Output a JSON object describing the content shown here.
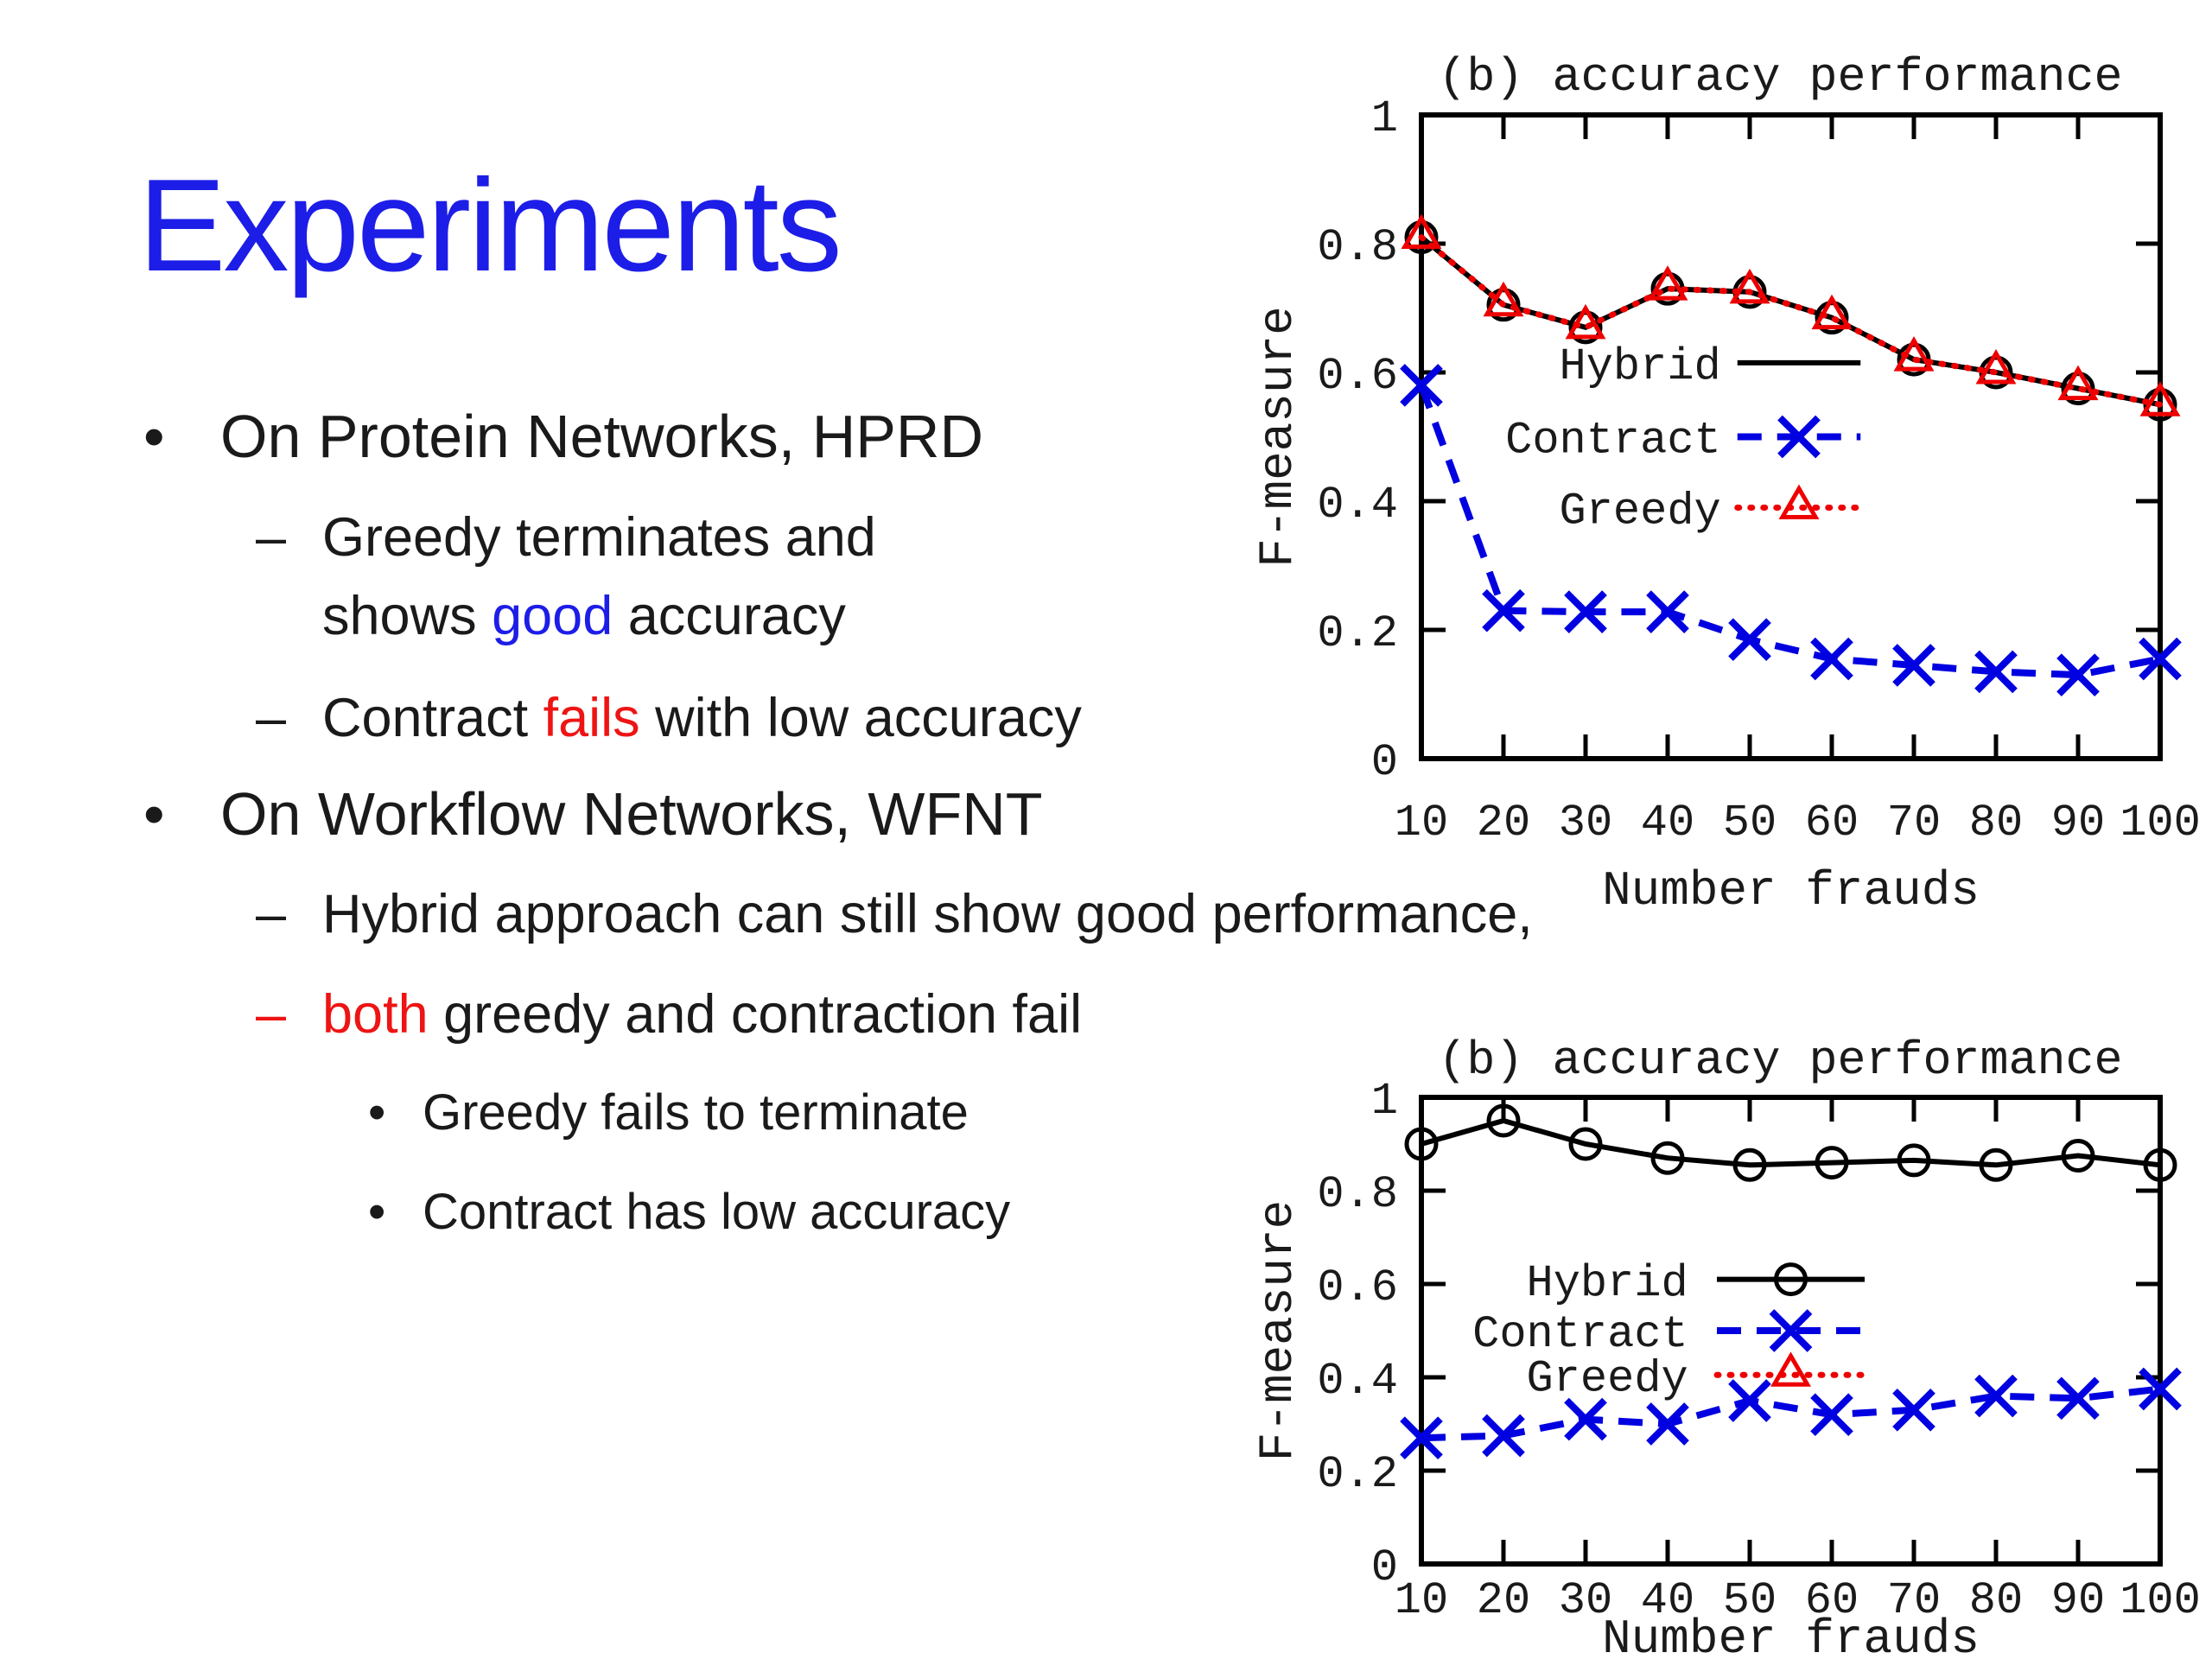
{
  "slide": {
    "title": "Experiments",
    "colors": {
      "title_blue": "#1d1de8",
      "body": "#1a1a1a",
      "accent_blue": "#1d1de8",
      "accent_red": "#ee1414",
      "chart_black": "#000000",
      "chart_blue": "#0000e0",
      "chart_red": "#ee0000",
      "background": "#ffffff"
    },
    "lines": [
      {
        "level": 1,
        "marker": "•",
        "segments": [
          {
            "text": "On Protein Networks, HPRD"
          }
        ]
      },
      {
        "level": 2,
        "marker": "–",
        "segments": [
          {
            "text": "Greedy terminates and"
          }
        ]
      },
      {
        "level": 2,
        "marker": "",
        "segments": [
          {
            "text": "shows "
          },
          {
            "text": "good",
            "color": "accent_blue"
          },
          {
            "text": " accuracy"
          }
        ]
      },
      {
        "level": 2,
        "marker": "–",
        "segments": [
          {
            "text": "Contract "
          },
          {
            "text": "fails",
            "color": "accent_red"
          },
          {
            "text": " with low accuracy"
          }
        ]
      },
      {
        "level": 1,
        "marker": "•",
        "segments": [
          {
            "text": "On Workflow Networks, WFNT"
          }
        ]
      },
      {
        "level": 2,
        "marker": "–",
        "segments": [
          {
            "text": "Hybrid approach can still show good performance,"
          }
        ]
      },
      {
        "level": 2,
        "marker": "–",
        "marker_color": "accent_red",
        "segments": [
          {
            "text": "both",
            "color": "accent_red"
          },
          {
            "text": " greedy and contraction fail"
          }
        ]
      },
      {
        "level": 3,
        "marker": "•",
        "segments": [
          {
            "text": "Greedy fails to terminate"
          }
        ]
      },
      {
        "level": 3,
        "marker": "•",
        "segments": [
          {
            "text": "Contract has low accuracy"
          }
        ]
      }
    ]
  },
  "chart_data": [
    {
      "type": "line",
      "name": "hprd-accuracy",
      "title": "(b) accuracy performance",
      "xlabel": "Number frauds",
      "ylabel": "F-measure",
      "x": [
        10,
        20,
        30,
        40,
        50,
        60,
        70,
        80,
        90,
        100
      ],
      "xlim": [
        10,
        100
      ],
      "ylim": [
        0,
        1
      ],
      "xticks": [
        10,
        20,
        30,
        40,
        50,
        60,
        70,
        80,
        90,
        100
      ],
      "xtick_labels": [
        "10",
        "20",
        "30",
        "40",
        "50",
        "60",
        "70",
        "80",
        "90",
        "100"
      ],
      "yticks": [
        0,
        0.2,
        0.4,
        0.6,
        0.8,
        1
      ],
      "ytick_labels": [
        "0",
        "0.2",
        "0.4",
        "0.6",
        "0.8",
        "1"
      ],
      "grid": false,
      "series": [
        {
          "name": "Hybrid",
          "color": "#000000",
          "line": "solid",
          "marker": "circle",
          "values": [
            0.81,
            0.705,
            0.67,
            0.73,
            0.725,
            0.685,
            0.62,
            0.6,
            0.575,
            0.55
          ]
        },
        {
          "name": "Contract",
          "color": "#0000e0",
          "line": "dashed",
          "marker": "x",
          "values": [
            0.58,
            0.23,
            0.228,
            0.228,
            0.185,
            0.155,
            0.145,
            0.135,
            0.13,
            0.155
          ]
        },
        {
          "name": "Greedy",
          "color": "#ee0000",
          "line": "dotted",
          "marker": "triangle",
          "values": [
            0.81,
            0.705,
            0.67,
            0.73,
            0.725,
            0.685,
            0.62,
            0.6,
            0.575,
            0.55
          ]
        }
      ],
      "legend": {
        "position": "inside-center",
        "label_right_x": 46.5,
        "sample_x": [
          48.5,
          63.5
        ],
        "rows": [
          {
            "label": "Hybrid",
            "series": 0,
            "y": 0.615,
            "show_marker": false
          },
          {
            "label": "Contract",
            "series": 1,
            "y": 0.5,
            "show_marker": true
          },
          {
            "label": "Greedy",
            "series": 2,
            "y": 0.39,
            "show_marker": true
          }
        ]
      }
    },
    {
      "type": "line",
      "name": "wfnt-accuracy",
      "title": "(b) accuracy performance",
      "xlabel": "Number frauds",
      "ylabel": "F-measure",
      "x": [
        10,
        20,
        30,
        40,
        50,
        60,
        70,
        80,
        90,
        100
      ],
      "xlim": [
        10,
        100
      ],
      "ylim": [
        0,
        1
      ],
      "xticks": [
        10,
        20,
        30,
        40,
        50,
        60,
        70,
        80,
        90,
        100
      ],
      "xtick_labels": [
        "10",
        "20",
        "30",
        "40",
        "50",
        "60",
        "70",
        "80",
        "90",
        "100"
      ],
      "yticks": [
        0,
        0.2,
        0.4,
        0.6,
        0.8,
        1
      ],
      "ytick_labels": [
        "0",
        "0.2",
        "0.4",
        "0.6",
        "0.8",
        "1"
      ],
      "grid": false,
      "series": [
        {
          "name": "Hybrid",
          "color": "#000000",
          "line": "solid",
          "marker": "circle",
          "values": [
            0.9,
            0.95,
            0.9,
            0.87,
            0.855,
            0.86,
            0.865,
            0.855,
            0.875,
            0.855
          ]
        },
        {
          "name": "Contract",
          "color": "#0000e0",
          "line": "dashed",
          "marker": "x",
          "values": [
            0.27,
            0.275,
            0.31,
            0.3,
            0.35,
            0.32,
            0.33,
            0.36,
            0.355,
            0.375
          ]
        },
        {
          "name": "Greedy",
          "color": "#ee0000",
          "line": "dotted",
          "marker": "triangle",
          "values": []
        }
      ],
      "legend": {
        "position": "inside-left",
        "label_right_x": 42.5,
        "sample_x": [
          46,
          64
        ],
        "rows": [
          {
            "label": "Hybrid",
            "series": 0,
            "y": 0.61,
            "show_marker": true
          },
          {
            "label": "Contract",
            "series": 1,
            "y": 0.5,
            "show_marker": true
          },
          {
            "label": "Greedy",
            "series": 2,
            "y": 0.405,
            "show_marker": true
          }
        ]
      }
    }
  ]
}
